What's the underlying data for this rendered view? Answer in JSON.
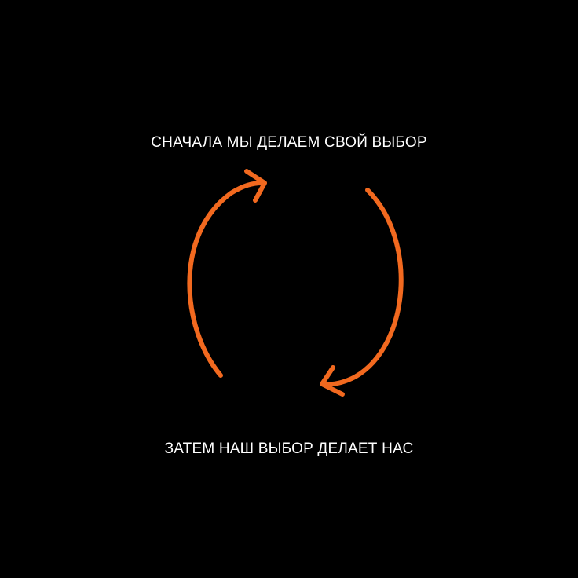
{
  "texts": {
    "top": "СНАЧАЛА МЫ ДЕЛАЕМ СВОЙ ВЫБОР",
    "bottom": "ЗАТЕМ НАШ ВЫБОР ДЕЛАЕТ НАС"
  },
  "colors": {
    "background": "#000000",
    "text": "#ffffff",
    "arrow": "#f2691f"
  },
  "icons": {
    "left_arrow": "curved-arrow-up-icon",
    "right_arrow": "curved-arrow-down-icon"
  }
}
